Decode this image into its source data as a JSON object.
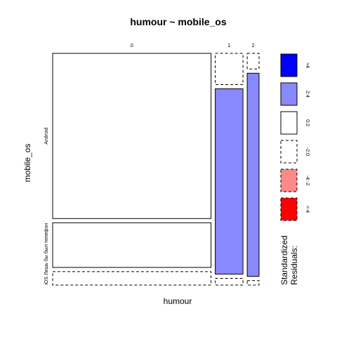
{
  "chart_data": {
    "type": "mosaic",
    "title": "humour ~ mobile_os",
    "xlabel": "humour",
    "ylabel": "mobile_os",
    "x_categories": [
      "0",
      "1",
      "2"
    ],
    "y_categories": [
      "Android",
      "iOS",
      "Лишь бы был телефон"
    ],
    "y_row_labels": [
      "Android",
      "iOS",
      "Лишь бы был телефон"
    ],
    "proportions": {
      "column_widths": [
        0.8,
        0.14,
        0.06
      ],
      "android_share_by_column": [
        0.74,
        0.14,
        0.07
      ],
      "ios_share_by_column": [
        0.2,
        0.83,
        0.91
      ],
      "other_share_by_column": [
        0.06,
        0.03,
        0.02
      ]
    },
    "residual_bins": [
      "<-4",
      "-4:-2",
      "-2:0",
      "0:2",
      "2:4",
      ">4"
    ],
    "cell_bins": [
      [
        "0:2",
        "-2:0",
        "-2:0"
      ],
      [
        "0:2",
        "2:4",
        "2:4"
      ],
      [
        "-2:0",
        "-2:0",
        "-2:0"
      ]
    ],
    "legend": {
      "title_line1": "Standardized",
      "title_line2": "Residuals:",
      "labels": [
        ">4",
        "2:4",
        "0:2",
        "-2:0",
        "-4:-2",
        "<-4"
      ],
      "colors": [
        "#0000ff",
        "#8888ff",
        "#ffffff",
        "#ffffff",
        "#ff8888",
        "#ff0000"
      ],
      "dashed": [
        false,
        false,
        false,
        true,
        true,
        true
      ]
    }
  },
  "colors": {
    "strong_positive": "#0000ff",
    "positive": "#8888ff",
    "neutral": "#ffffff",
    "negative": "#ff8888",
    "strong_negative": "#ff0000"
  }
}
